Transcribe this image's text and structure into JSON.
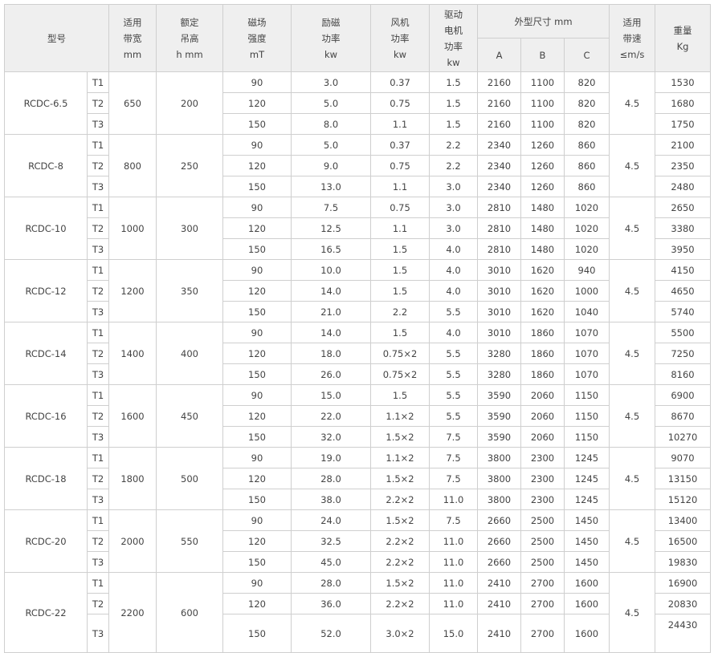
{
  "header": {
    "model": "型号",
    "belt_width": [
      "适用",
      "带宽",
      "mm"
    ],
    "lift_height": [
      "额定",
      "吊高",
      "h mm"
    ],
    "field_strength": [
      "磁场",
      "强度",
      "mT"
    ],
    "excitation_power": [
      "励磁",
      "功率",
      "kw"
    ],
    "fan_power": [
      "风机",
      "功率",
      "kw"
    ],
    "drive_power": [
      "驱动",
      "电机",
      "功率",
      "kw"
    ],
    "dimensions": "外型尺寸 mm",
    "dim_a": "A",
    "dim_b": "B",
    "dim_c": "C",
    "belt_speed": [
      "适用",
      "带速",
      "≤m/s"
    ],
    "weight": [
      "重量",
      "Kg"
    ]
  },
  "groups": [
    {
      "model": "RCDC-6.5",
      "belt_width": "650",
      "lift_height": "200",
      "speed": "4.5",
      "rows": [
        [
          "T1",
          "90",
          "3.0",
          "0.37",
          "1.5",
          "2160",
          "1100",
          "820",
          "1530"
        ],
        [
          "T2",
          "120",
          "5.0",
          "0.75",
          "1.5",
          "2160",
          "1100",
          "820",
          "1680"
        ],
        [
          "T3",
          "150",
          "8.0",
          "1.1",
          "1.5",
          "2160",
          "1100",
          "820",
          "1750"
        ]
      ]
    },
    {
      "model": "RCDC-8",
      "belt_width": "800",
      "lift_height": "250",
      "speed": "4.5",
      "rows": [
        [
          "T1",
          "90",
          "5.0",
          "0.37",
          "2.2",
          "2340",
          "1260",
          "860",
          "2100"
        ],
        [
          "T2",
          "120",
          "9.0",
          "0.75",
          "2.2",
          "2340",
          "1260",
          "860",
          "2350"
        ],
        [
          "T3",
          "150",
          "13.0",
          "1.1",
          "3.0",
          "2340",
          "1260",
          "860",
          "2480"
        ]
      ]
    },
    {
      "model": "RCDC-10",
      "belt_width": "1000",
      "lift_height": "300",
      "speed": "4.5",
      "rows": [
        [
          "T1",
          "90",
          "7.5",
          "0.75",
          "3.0",
          "2810",
          "1480",
          "1020",
          "2650"
        ],
        [
          "T2",
          "120",
          "12.5",
          "1.1",
          "3.0",
          "2810",
          "1480",
          "1020",
          "3380"
        ],
        [
          "T3",
          "150",
          "16.5",
          "1.5",
          "4.0",
          "2810",
          "1480",
          "1020",
          "3950"
        ]
      ]
    },
    {
      "model": "RCDC-12",
      "belt_width": "1200",
      "lift_height": "350",
      "speed": "4.5",
      "rows": [
        [
          "T1",
          "90",
          "10.0",
          "1.5",
          "4.0",
          "3010",
          "1620",
          "940",
          "4150"
        ],
        [
          "T2",
          "120",
          "14.0",
          "1.5",
          "4.0",
          "3010",
          "1620",
          "1000",
          "4650"
        ],
        [
          "T3",
          "150",
          "21.0",
          "2.2",
          "5.5",
          "3010",
          "1620",
          "1040",
          "5740"
        ]
      ]
    },
    {
      "model": "RCDC-14",
      "belt_width": "1400",
      "lift_height": "400",
      "speed": "4.5",
      "rows": [
        [
          "T1",
          "90",
          "14.0",
          "1.5",
          "4.0",
          "3010",
          "1860",
          "1070",
          "5500"
        ],
        [
          "T2",
          "120",
          "18.0",
          "0.75×2",
          "5.5",
          "3280",
          "1860",
          "1070",
          "7250"
        ],
        [
          "T3",
          "150",
          "26.0",
          "0.75×2",
          "5.5",
          "3280",
          "1860",
          "1070",
          "8160"
        ]
      ]
    },
    {
      "model": "RCDC-16",
      "belt_width": "1600",
      "lift_height": "450",
      "speed": "4.5",
      "rows": [
        [
          "T1",
          "90",
          "15.0",
          "1.5",
          "5.5",
          "3590",
          "2060",
          "1150",
          "6900"
        ],
        [
          "T2",
          "120",
          "22.0",
          "1.1×2",
          "5.5",
          "3590",
          "2060",
          "1150",
          "8670"
        ],
        [
          "T3",
          "150",
          "32.0",
          "1.5×2",
          "7.5",
          "3590",
          "2060",
          "1150",
          "10270"
        ]
      ]
    },
    {
      "model": "RCDC-18",
      "belt_width": "1800",
      "lift_height": "500",
      "speed": "4.5",
      "rows": [
        [
          "T1",
          "90",
          "19.0",
          "1.1×2",
          "7.5",
          "3800",
          "2300",
          "1245",
          "9070"
        ],
        [
          "T2",
          "120",
          "28.0",
          "1.5×2",
          "7.5",
          "3800",
          "2300",
          "1245",
          "13150"
        ],
        [
          "T3",
          "150",
          "38.0",
          "2.2×2",
          "11.0",
          "3800",
          "2300",
          "1245",
          "15120"
        ]
      ]
    },
    {
      "model": "RCDC-20",
      "belt_width": "2000",
      "lift_height": "550",
      "speed": "4.5",
      "rows": [
        [
          "T1",
          "90",
          "24.0",
          "1.5×2",
          "7.5",
          "2660",
          "2500",
          "1450",
          "13400"
        ],
        [
          "T2",
          "120",
          "32.5",
          "2.2×2",
          "11.0",
          "2660",
          "2500",
          "1450",
          "16500"
        ],
        [
          "T3",
          "150",
          "45.0",
          "2.2×2",
          "11.0",
          "2660",
          "2500",
          "1450",
          "19830"
        ]
      ]
    },
    {
      "model": "RCDC-22",
      "belt_width": "2200",
      "lift_height": "600",
      "speed": "4.5",
      "rows": [
        [
          "T1",
          "90",
          "28.0",
          "1.5×2",
          "11.0",
          "2410",
          "2700",
          "1600",
          "16900"
        ],
        [
          "T2",
          "120",
          "36.0",
          "2.2×2",
          "11.0",
          "2410",
          "2700",
          "1600",
          "20830"
        ],
        [
          "T3",
          "150",
          "52.0",
          "3.0×2",
          "15.0",
          "2410",
          "2700",
          "1600",
          "24430"
        ]
      ]
    }
  ]
}
